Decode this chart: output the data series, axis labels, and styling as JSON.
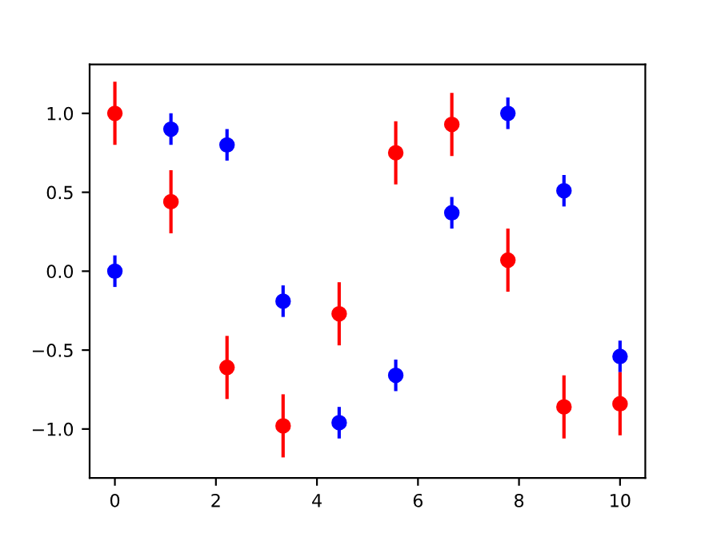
{
  "chart_data": {
    "type": "scatter",
    "marker": "circle",
    "x": [
      0,
      1.11,
      2.22,
      3.33,
      4.44,
      5.56,
      6.67,
      7.78,
      8.89,
      10
    ],
    "series": [
      {
        "color": "#0000ff",
        "values": [
          0,
          0.9,
          0.8,
          -0.19,
          -0.96,
          -0.66,
          0.37,
          1.0,
          0.51,
          -0.54
        ],
        "errors": [
          0.1,
          0.1,
          0.1,
          0.1,
          0.1,
          0.1,
          0.1,
          0.1,
          0.1,
          0.1
        ]
      },
      {
        "color": "#ff0000",
        "values": [
          1.0,
          0.44,
          -0.61,
          -0.98,
          -0.27,
          0.75,
          0.93,
          0.07,
          -0.86,
          -0.84
        ],
        "errors": [
          0.2,
          0.2,
          0.2,
          0.2,
          0.2,
          0.2,
          0.2,
          0.2,
          0.2,
          0.2
        ]
      }
    ],
    "xlim": [
      -0.5,
      10.5
    ],
    "xticks": [
      0,
      2,
      4,
      6,
      8,
      10
    ],
    "ylim": [
      -1.31,
      1.31
    ],
    "yticks": [
      {
        "value": -1.0,
        "label": "−1.0"
      },
      {
        "value": -0.5,
        "label": "−0.5"
      },
      {
        "value": 0.0,
        "label": "0.0"
      },
      {
        "value": 0.5,
        "label": "0.5"
      },
      {
        "value": 1.0,
        "label": "1.0"
      }
    ],
    "grid": false,
    "legend": false
  }
}
